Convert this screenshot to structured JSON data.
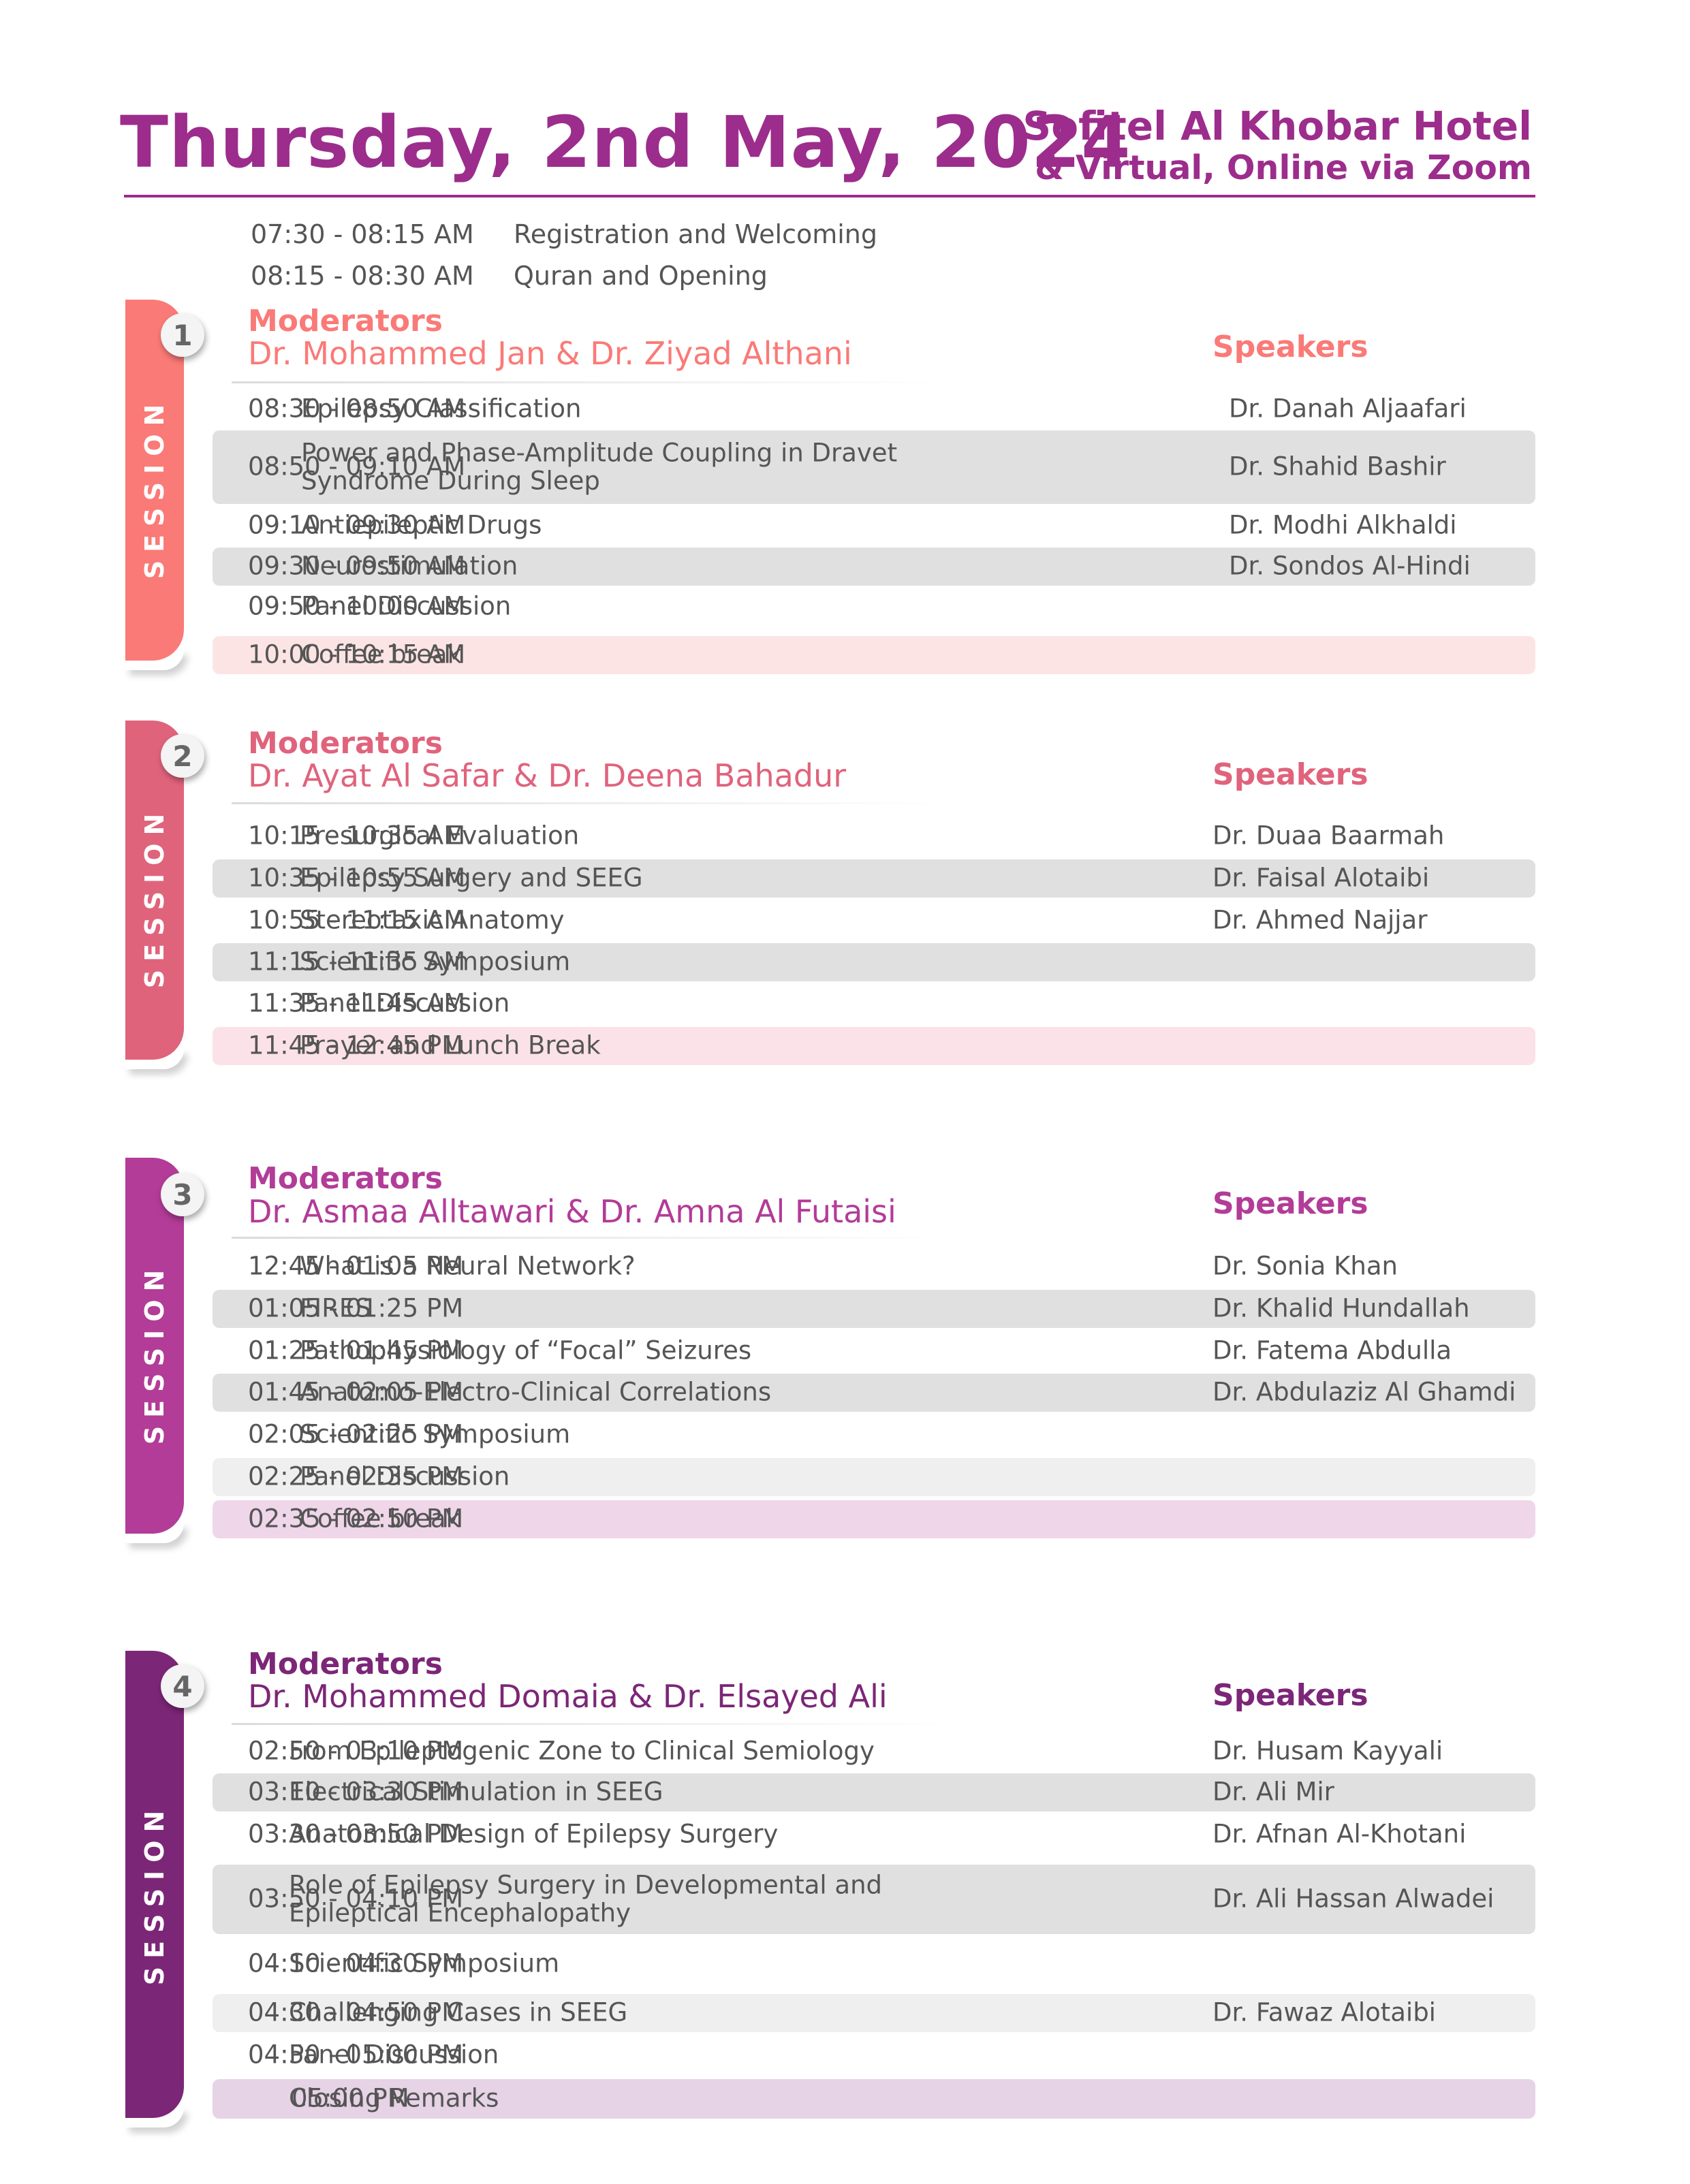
{
  "header": {
    "title": "Thursday, 2nd May, 2024",
    "venue_line1": "Sofitel Al Khobar Hotel",
    "venue_line2": "& Virtual, Online via Zoom"
  },
  "pre_sessions": [
    {
      "time": "07:30 - 08:15 AM",
      "topic": "Registration and Welcoming"
    },
    {
      "time": "08:15 - 08:30 AM",
      "topic": "Quran and Opening"
    }
  ],
  "sessions": [
    {
      "number": "1",
      "tab_label": "SESSION",
      "color": "#fa7a77",
      "moderators_label": "Moderators",
      "moderators": "Dr. Mohammed Jan & Dr. Ziyad Althani",
      "speakers_label": "Speakers",
      "rows": [
        {
          "time": "08:30 - 08:50 AM",
          "topic": "Epilepsy Classification",
          "speaker": "Dr. Danah Aljaafari"
        },
        {
          "time": "08:50 - 09:10 AM",
          "topic": "Power and Phase-Amplitude Coupling in Dravet\nSyndrome During Sleep",
          "speaker": "Dr. Shahid Bashir"
        },
        {
          "time": "09:10 - 09:30 AM",
          "topic": "Antiepileptic Drugs",
          "speaker": "Dr. Modhi Alkhaldi"
        },
        {
          "time": "09:30 - 09:50 AM",
          "topic": "Neurostimulation",
          "speaker": "Dr. Sondos Al-Hindi"
        },
        {
          "time": "09:50 - 10:00 AM",
          "topic": "Panel Discussion",
          "speaker": ""
        },
        {
          "time": "10:00  -  10:15  AM",
          "topic": "Coffee break",
          "speaker": ""
        }
      ]
    },
    {
      "number": "2",
      "tab_label": "SESSION",
      "color": "#e0637c",
      "moderators_label": "Moderators",
      "moderators": "Dr.  Ayat Al Safar & Dr. Deena Bahadur",
      "speakers_label": "Speakers",
      "rows": [
        {
          "time": "10:15 - 10:35 AM",
          "topic": "Presurgical Evaluation",
          "speaker": "Dr.  Duaa Baarmah"
        },
        {
          "time": "10:35 - 10:55 AM",
          "topic": "Epilepsy Surgery and SEEG",
          "speaker": "Dr. Faisal Alotaibi"
        },
        {
          "time": "10:55  -  11:15  AM",
          "topic": "Stereotaxic Anatomy",
          "speaker": "Dr. Ahmed Najjar"
        },
        {
          "time": "11:15  -  11:35  AM",
          "topic": "Scientific Symposium",
          "speaker": ""
        },
        {
          "time": "11:35  -  11:45  AM",
          "topic": "Panel Discussion",
          "speaker": ""
        },
        {
          "time": "11:45  -  12:45 PM",
          "topic": "Prayer and Lunch Break",
          "speaker": ""
        }
      ]
    },
    {
      "number": "3",
      "tab_label": "SESSION",
      "color": "#b23c97",
      "moderators_label": "Moderators",
      "moderators": "Dr. Asmaa Alltawari & Dr. Amna Al Futaisi",
      "speakers_label": "Speakers",
      "rows": [
        {
          "time": "12:45  -  01:05  PM",
          "topic": "What is a Neural Network?",
          "speaker": "Dr. Sonia Khan"
        },
        {
          "time": "01:05  -  01:25  PM",
          "topic": "FIRES",
          "speaker": "Dr. Khalid  Hundallah"
        },
        {
          "time": "01:25  -  01:45  PM",
          "topic": "Pathophysiology of “Focal” Seizures",
          "speaker": "Dr. Fatema Abdulla"
        },
        {
          "time": "01:45  -  02:05 PM",
          "topic": "Anatomo-Electro-Clinical Correlations",
          "speaker": "Dr. Abdulaziz Al Ghamdi"
        },
        {
          "time": "02:05  -  02:25 PM",
          "topic": "Scientific Symposium",
          "speaker": ""
        },
        {
          "time": "02:25  -  02:35 PM",
          "topic": "Panel Discussion",
          "speaker": ""
        },
        {
          "time": "02:35  -  02:50 PM",
          "topic": "Coffee break",
          "speaker": ""
        }
      ]
    },
    {
      "number": "4",
      "tab_label": "SESSION",
      "color": "#7c2677",
      "moderators_label": "Moderators",
      "moderators": "Dr. Mohammed Domaia & Dr. Elsayed Ali",
      "speakers_label": "Speakers",
      "rows": [
        {
          "time": "02:50  -  03:10 PM",
          "topic": "From Epileptogenic Zone to Clinical Semiology",
          "speaker": "Dr. Husam Kayyali"
        },
        {
          "time": "03:10  -  03:30 PM",
          "topic": "Electrical Stimulation in SEEG",
          "speaker": "Dr. Ali Mir"
        },
        {
          "time": "03:30  -  03:50 PM",
          "topic": "Anatomical Design of Epilepsy Surgery",
          "speaker": "Dr. Afnan Al-Khotani"
        },
        {
          "time": "03:50  -  04:10 PM",
          "topic": "Role of Epilepsy Surgery in Developmental and\nEpileptical Encephalopathy",
          "speaker": "Dr. Ali Hassan Alwadei"
        },
        {
          "time": "04:10  -  04:30 PM",
          "topic": "Scientific Symposium",
          "speaker": ""
        },
        {
          "time": "04:30  -  04:50 PM",
          "topic": "Challenging Cases in SEEG",
          "speaker": "Dr. Fawaz  Alotaibi"
        },
        {
          "time": "04:50  -  05:00 PM",
          "topic": "Panel Discussion",
          "speaker": ""
        },
        {
          "time": "05:00 PM",
          "topic": "Closing Remarks",
          "speaker": ""
        }
      ]
    }
  ]
}
